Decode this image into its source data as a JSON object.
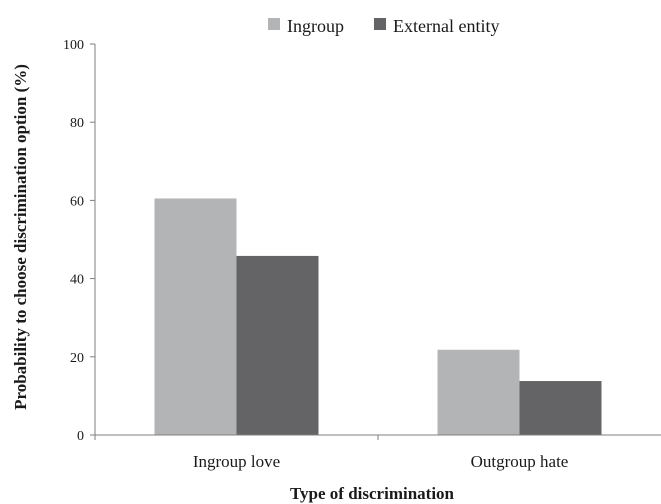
{
  "chart_data": {
    "type": "bar",
    "title": "",
    "xlabel": "Type of discrimination",
    "ylabel": "Probability to choose  discrimination option (%)",
    "categories": [
      "Ingroup love",
      "Outgroup hate"
    ],
    "series": [
      {
        "name": "Ingroup",
        "values": [
          60.5,
          21.8
        ],
        "color": "#b3b4b6"
      },
      {
        "name": "External entity",
        "values": [
          45.8,
          13.8
        ],
        "color": "#646466"
      }
    ],
    "ylim": [
      0,
      100
    ],
    "yticks": [
      0,
      20,
      40,
      60,
      80,
      100
    ],
    "grid": false,
    "legend": "top-center"
  }
}
